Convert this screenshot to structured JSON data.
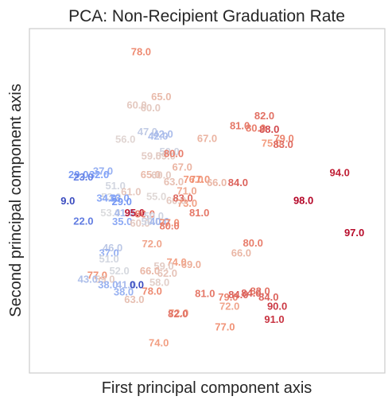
{
  "chart_data": {
    "type": "scatter",
    "title": "PCA: Non-Recipient Graduation Rate",
    "xlabel": "First principal component axis",
    "ylabel": "Second principal component axis",
    "grid": false,
    "colormap": "coolwarm",
    "color_range": [
      9,
      98
    ],
    "xlim": [
      0,
      100
    ],
    "ylim": [
      0,
      100
    ],
    "points": [
      {
        "x": 31.4,
        "y": 93.0,
        "label": "78.0"
      },
      {
        "x": 37.1,
        "y": 80.0,
        "label": "65.0"
      },
      {
        "x": 30.2,
        "y": 77.6,
        "label": "60.0"
      },
      {
        "x": 34.1,
        "y": 76.8,
        "label": "60.0"
      },
      {
        "x": 66.1,
        "y": 74.4,
        "label": "82.0"
      },
      {
        "x": 59.2,
        "y": 71.6,
        "label": "81.0"
      },
      {
        "x": 67.5,
        "y": 70.5,
        "label": "88.0"
      },
      {
        "x": 63.7,
        "y": 70.9,
        "label": "80.0"
      },
      {
        "x": 33.2,
        "y": 69.8,
        "label": "47.0"
      },
      {
        "x": 37.6,
        "y": 69.1,
        "label": "42.0"
      },
      {
        "x": 36.2,
        "y": 68.6,
        "label": "42.0"
      },
      {
        "x": 27.0,
        "y": 67.7,
        "label": "56.0"
      },
      {
        "x": 50.0,
        "y": 67.9,
        "label": "67.0"
      },
      {
        "x": 71.6,
        "y": 67.9,
        "label": "79.0"
      },
      {
        "x": 68.1,
        "y": 66.5,
        "label": "75.0"
      },
      {
        "x": 71.4,
        "y": 66.2,
        "label": "83.0"
      },
      {
        "x": 39.4,
        "y": 64.1,
        "label": "50.0"
      },
      {
        "x": 34.3,
        "y": 62.8,
        "label": "59.0"
      },
      {
        "x": 38.3,
        "y": 62.8,
        "label": "59.0"
      },
      {
        "x": 40.6,
        "y": 63.5,
        "label": "80.0"
      },
      {
        "x": 43.0,
        "y": 59.6,
        "label": "67.0"
      },
      {
        "x": 20.7,
        "y": 58.4,
        "label": "37.0"
      },
      {
        "x": 13.8,
        "y": 57.4,
        "label": "29.0"
      },
      {
        "x": 19.6,
        "y": 57.4,
        "label": "32.0"
      },
      {
        "x": 15.2,
        "y": 56.7,
        "label": "23.0"
      },
      {
        "x": 34.1,
        "y": 57.4,
        "label": "65.0"
      },
      {
        "x": 37.1,
        "y": 57.2,
        "label": "60.0"
      },
      {
        "x": 40.6,
        "y": 55.3,
        "label": "63.0"
      },
      {
        "x": 46.1,
        "y": 56.0,
        "label": "76.0"
      },
      {
        "x": 48.0,
        "y": 56.0,
        "label": "77.0"
      },
      {
        "x": 52.7,
        "y": 55.1,
        "label": "66.0"
      },
      {
        "x": 58.7,
        "y": 55.1,
        "label": "84.0"
      },
      {
        "x": 87.3,
        "y": 57.9,
        "label": "94.0"
      },
      {
        "x": 24.2,
        "y": 54.1,
        "label": "51.0"
      },
      {
        "x": 28.6,
        "y": 52.4,
        "label": "61.0"
      },
      {
        "x": 23.0,
        "y": 50.9,
        "label": "53.0"
      },
      {
        "x": 21.7,
        "y": 50.6,
        "label": "34.0"
      },
      {
        "x": 25.3,
        "y": 50.6,
        "label": "33.0"
      },
      {
        "x": 26.0,
        "y": 49.5,
        "label": "29.0"
      },
      {
        "x": 35.7,
        "y": 51.0,
        "label": "55.0"
      },
      {
        "x": 44.3,
        "y": 52.6,
        "label": "71.0"
      },
      {
        "x": 41.3,
        "y": 49.9,
        "label": "60.0"
      },
      {
        "x": 43.2,
        "y": 50.6,
        "label": "83.0"
      },
      {
        "x": 44.4,
        "y": 49.0,
        "label": "73.0"
      },
      {
        "x": 10.8,
        "y": 49.7,
        "label": "9.0"
      },
      {
        "x": 77.1,
        "y": 49.9,
        "label": "98.0"
      },
      {
        "x": 47.8,
        "y": 46.3,
        "label": "81.0"
      },
      {
        "x": 22.8,
        "y": 46.3,
        "label": "53.0"
      },
      {
        "x": 26.7,
        "y": 46.3,
        "label": "41.0"
      },
      {
        "x": 29.6,
        "y": 46.3,
        "label": "95.0"
      },
      {
        "x": 32.5,
        "y": 45.9,
        "label": "80.0"
      },
      {
        "x": 35.0,
        "y": 45.4,
        "label": "50.0"
      },
      {
        "x": 26.1,
        "y": 43.7,
        "label": "35.0"
      },
      {
        "x": 31.1,
        "y": 43.3,
        "label": "60.0"
      },
      {
        "x": 34.3,
        "y": 43.7,
        "label": "50.0"
      },
      {
        "x": 36.6,
        "y": 43.7,
        "label": "40.0"
      },
      {
        "x": 39.4,
        "y": 43.4,
        "label": "77.0"
      },
      {
        "x": 39.4,
        "y": 42.5,
        "label": "80.0"
      },
      {
        "x": 15.2,
        "y": 43.9,
        "label": "22.0"
      },
      {
        "x": 62.9,
        "y": 37.5,
        "label": "80.0"
      },
      {
        "x": 91.4,
        "y": 40.5,
        "label": "97.0"
      },
      {
        "x": 34.5,
        "y": 37.3,
        "label": "72.0"
      },
      {
        "x": 23.4,
        "y": 36.1,
        "label": "46.0"
      },
      {
        "x": 22.4,
        "y": 34.6,
        "label": "37.0"
      },
      {
        "x": 22.4,
        "y": 32.9,
        "label": "51.0"
      },
      {
        "x": 41.4,
        "y": 32.0,
        "label": "74.0"
      },
      {
        "x": 45.5,
        "y": 31.3,
        "label": "69.0"
      },
      {
        "x": 59.6,
        "y": 34.6,
        "label": "66.0"
      },
      {
        "x": 37.8,
        "y": 30.8,
        "label": "59.0"
      },
      {
        "x": 25.3,
        "y": 29.4,
        "label": "52.0"
      },
      {
        "x": 19.1,
        "y": 28.2,
        "label": "77.0"
      },
      {
        "x": 21.2,
        "y": 27.0,
        "label": "59.0"
      },
      {
        "x": 33.9,
        "y": 29.4,
        "label": "66.0"
      },
      {
        "x": 38.8,
        "y": 28.7,
        "label": "62.0"
      },
      {
        "x": 16.4,
        "y": 27.0,
        "label": "43.0"
      },
      {
        "x": 22.1,
        "y": 25.4,
        "label": "38.0"
      },
      {
        "x": 27.2,
        "y": 25.4,
        "label": "41.0"
      },
      {
        "x": 30.2,
        "y": 25.4,
        "label": "0.0"
      },
      {
        "x": 36.6,
        "y": 26.1,
        "label": "58.0"
      },
      {
        "x": 34.5,
        "y": 23.5,
        "label": "78.0"
      },
      {
        "x": 26.5,
        "y": 23.3,
        "label": "38.0"
      },
      {
        "x": 29.5,
        "y": 21.1,
        "label": "63.0"
      },
      {
        "x": 49.4,
        "y": 22.8,
        "label": "81.0"
      },
      {
        "x": 55.9,
        "y": 21.8,
        "label": "79.0"
      },
      {
        "x": 58.8,
        "y": 22.5,
        "label": "84.0"
      },
      {
        "x": 62.4,
        "y": 23.0,
        "label": "84.0"
      },
      {
        "x": 64.9,
        "y": 23.5,
        "label": "82.0"
      },
      {
        "x": 67.3,
        "y": 21.8,
        "label": "84.0"
      },
      {
        "x": 56.3,
        "y": 19.1,
        "label": "72.0"
      },
      {
        "x": 69.7,
        "y": 19.1,
        "label": "90.0"
      },
      {
        "x": 42.0,
        "y": 17.2,
        "label": "72.0"
      },
      {
        "x": 41.8,
        "y": 16.9,
        "label": "82.0"
      },
      {
        "x": 68.9,
        "y": 15.3,
        "label": "91.0"
      },
      {
        "x": 55.0,
        "y": 13.1,
        "label": "77.0"
      },
      {
        "x": 36.4,
        "y": 8.5,
        "label": "74.0"
      }
    ]
  }
}
